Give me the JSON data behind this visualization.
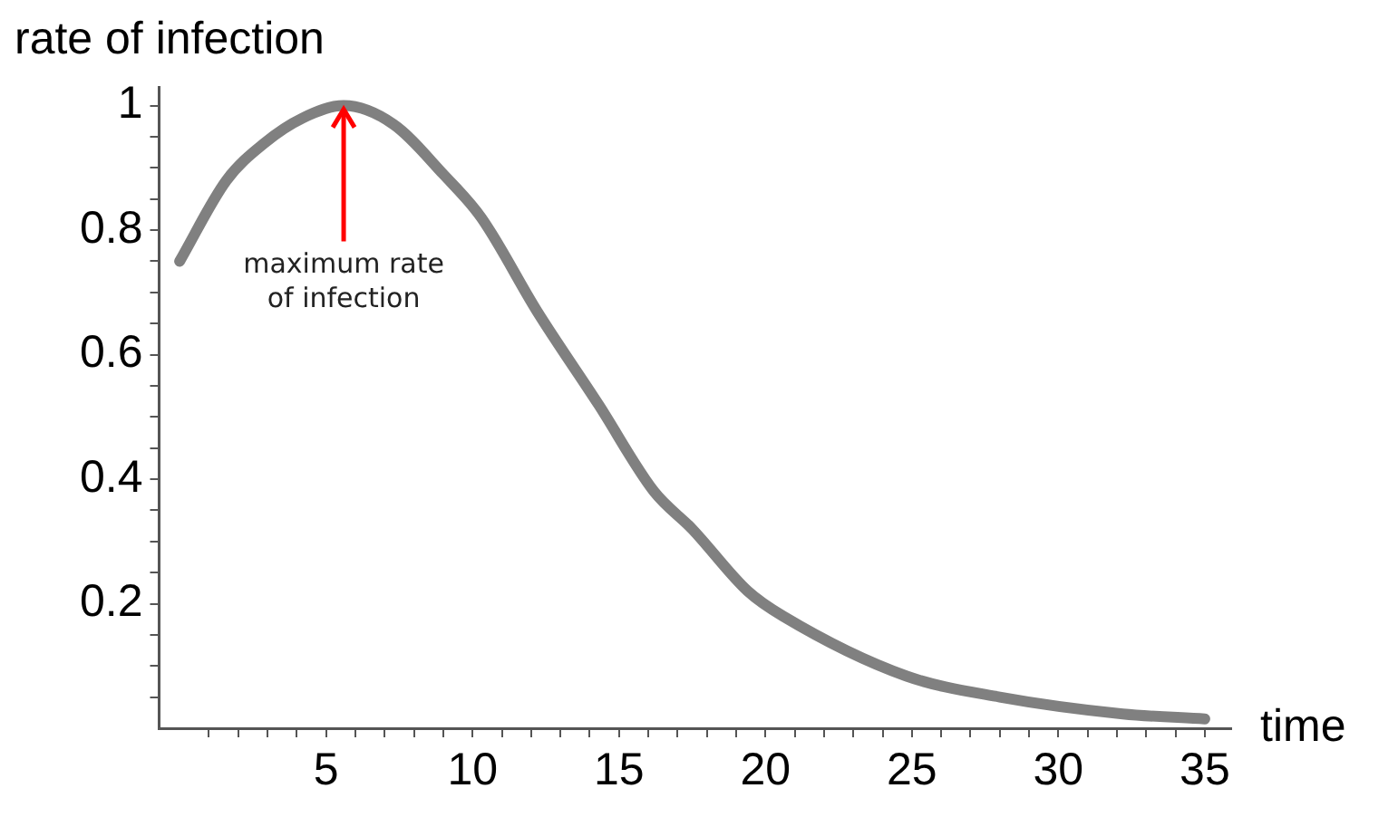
{
  "chart_data": {
    "type": "line",
    "xlabel": "time",
    "ylabel": "rate of infection",
    "x": [
      0,
      1.6,
      2.9,
      4.2,
      5.6,
      7.3,
      9,
      10.3,
      12.2,
      14.3,
      16.2,
      17.5,
      19.4,
      20.6,
      24.8,
      28,
      32.2,
      35
    ],
    "series": [
      {
        "color": "#808080",
        "values": [
          0.75,
          0.88,
          0.94,
          0.98,
          1.0,
          0.97,
          0.89,
          0.82,
          0.67,
          0.52,
          0.38,
          0.32,
          0.22,
          0.18,
          0.084,
          0.05,
          0.023,
          0.015
        ]
      }
    ],
    "xlim": [
      -0.7,
      35.9
    ],
    "ylim": [
      0,
      1.03
    ],
    "xticks": [
      {
        "value": 1,
        "label": null
      },
      {
        "value": 2,
        "label": null
      },
      {
        "value": 3,
        "label": null
      },
      {
        "value": 4,
        "label": null
      },
      5,
      {
        "value": 6,
        "label": null
      },
      {
        "value": 7,
        "label": null
      },
      {
        "value": 8,
        "label": null
      },
      {
        "value": 9,
        "label": null
      },
      10,
      {
        "value": 11,
        "label": null
      },
      {
        "value": 12,
        "label": null
      },
      {
        "value": 13,
        "label": null
      },
      {
        "value": 14,
        "label": null
      },
      15,
      {
        "value": 16,
        "label": null
      },
      {
        "value": 17,
        "label": null
      },
      {
        "value": 18,
        "label": null
      },
      {
        "value": 19,
        "label": null
      },
      20,
      {
        "value": 21,
        "label": null
      },
      {
        "value": 22,
        "label": null
      },
      {
        "value": 23,
        "label": null
      },
      {
        "value": 24,
        "label": null
      },
      25,
      {
        "value": 26,
        "label": null
      },
      {
        "value": 27,
        "label": null
      },
      {
        "value": 28,
        "label": null
      },
      {
        "value": 29,
        "label": null
      },
      30,
      {
        "value": 31,
        "label": null
      },
      {
        "value": 32,
        "label": null
      },
      {
        "value": 33,
        "label": null
      },
      {
        "value": 34,
        "label": null
      },
      35
    ],
    "yticks": [
      {
        "value": 0.05,
        "label": null
      },
      {
        "value": 0.1,
        "label": null
      },
      {
        "value": 0.15,
        "label": null
      },
      0.2,
      {
        "value": 0.25,
        "label": null
      },
      {
        "value": 0.3,
        "label": null
      },
      {
        "value": 0.35,
        "label": null
      },
      0.4,
      {
        "value": 0.45,
        "label": null
      },
      {
        "value": 0.5,
        "label": null
      },
      {
        "value": 0.55,
        "label": null
      },
      0.6,
      {
        "value": 0.65,
        "label": null
      },
      {
        "value": 0.7,
        "label": null
      },
      {
        "value": 0.75,
        "label": null
      },
      0.8,
      {
        "value": 0.85,
        "label": null
      },
      {
        "value": 0.9,
        "label": null
      },
      {
        "value": 0.95,
        "label": null
      },
      1
    ],
    "annotations": [
      {
        "text": "maximum rate of infection",
        "x": 5.6,
        "y": 1
      }
    ],
    "grid": false,
    "legend": false,
    "marker": "none",
    "line_style": "solid"
  }
}
